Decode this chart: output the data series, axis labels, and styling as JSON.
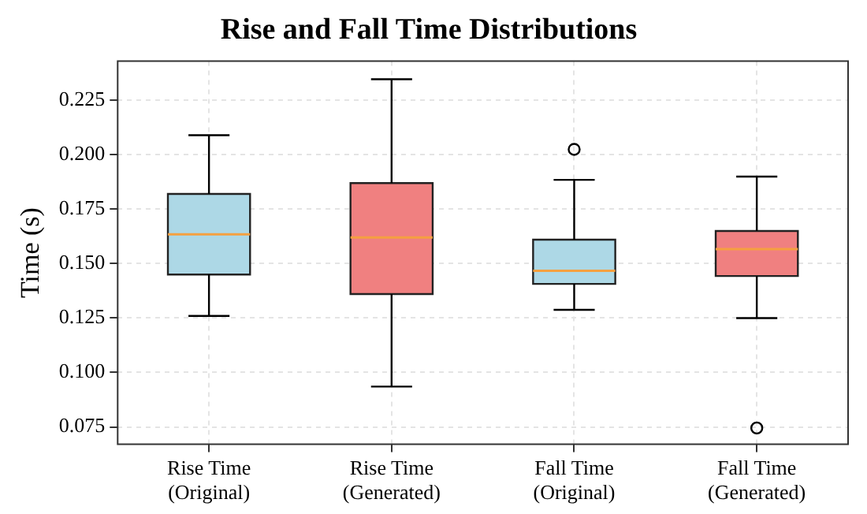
{
  "chart_data": {
    "type": "box",
    "title": "Rise and Fall Time Distributions",
    "ylabel": "Time (s)",
    "categories": [
      "Rise Time\n(Original)",
      "Rise Time\n(Generated)",
      "Fall Time\n(Original)",
      "Fall Time\n(Generated)"
    ],
    "colors": [
      "#add8e6",
      "#f08080",
      "#add8e6",
      "#f08080"
    ],
    "boxes": [
      {
        "low": 0.126,
        "q1": 0.145,
        "median": 0.1635,
        "q3": 0.182,
        "high": 0.209
      },
      {
        "low": 0.0935,
        "q1": 0.136,
        "median": 0.162,
        "q3": 0.187,
        "high": 0.2347
      },
      {
        "low": 0.1288,
        "q1": 0.1407,
        "median": 0.1467,
        "q3": 0.161,
        "high": 0.1885,
        "outliers": [
          0.2025
        ]
      },
      {
        "low": 0.125,
        "q1": 0.1443,
        "median": 0.1567,
        "q3": 0.165,
        "high": 0.19,
        "outliers": [
          0.0745
        ]
      }
    ],
    "ylim": [
      0.067,
      0.243
    ],
    "yticks": [
      {
        "value": 0.075,
        "label": "0.075"
      },
      {
        "value": 0.1,
        "label": "0.100"
      },
      {
        "value": 0.125,
        "label": "0.125"
      },
      {
        "value": 0.15,
        "label": "0.150"
      },
      {
        "value": 0.175,
        "label": "0.175"
      },
      {
        "value": 0.2,
        "label": "0.200"
      },
      {
        "value": 0.225,
        "label": "0.225"
      }
    ],
    "grid": true,
    "legend": false
  }
}
